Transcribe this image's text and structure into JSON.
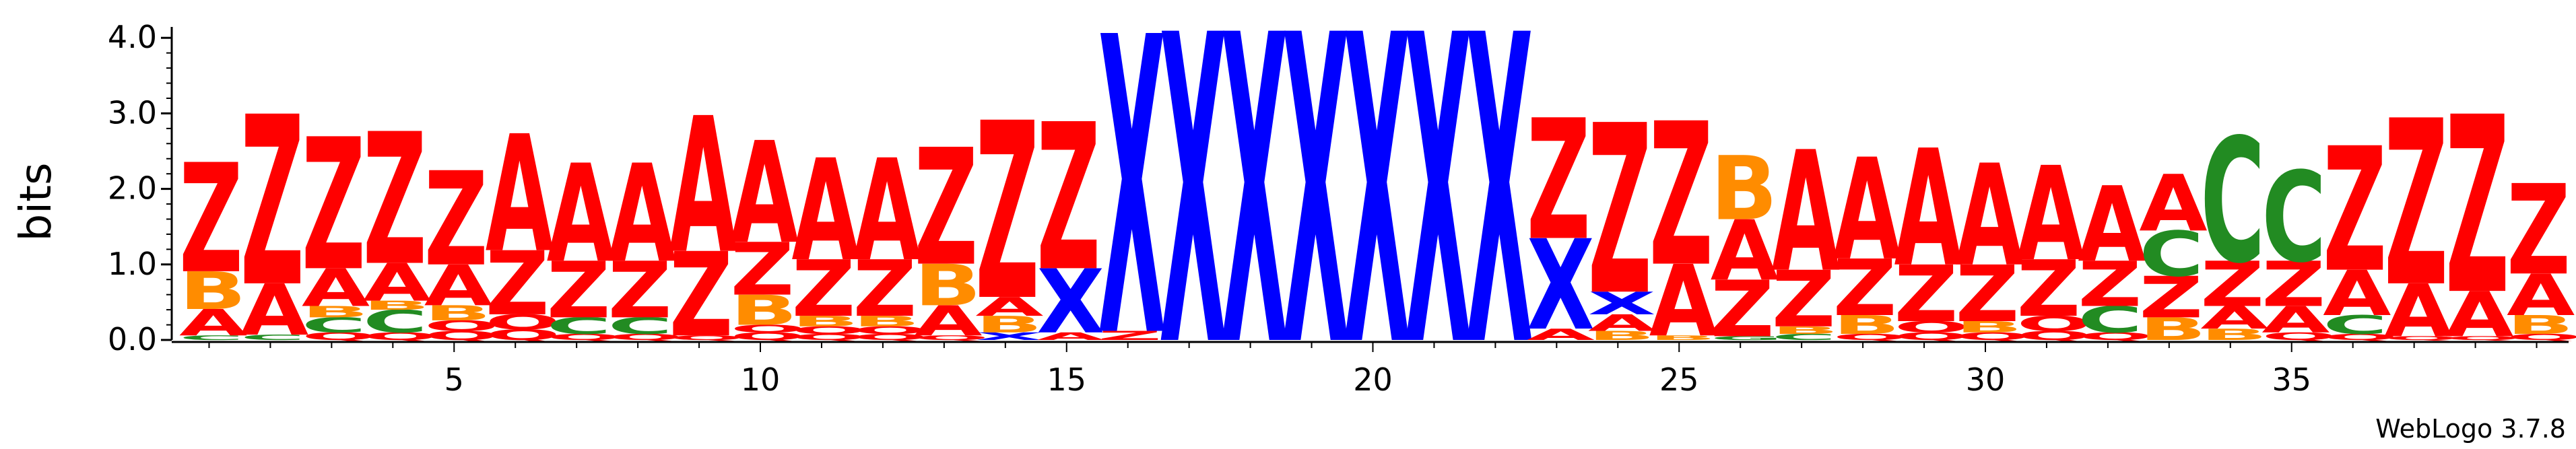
{
  "chart_data": {
    "type": "sequence-logo",
    "ylabel": "bits",
    "ylim": [
      0,
      4.1
    ],
    "yticks": [
      "0.0",
      "1.0",
      "2.0",
      "3.0",
      "4.0"
    ],
    "ytick_values": [
      0,
      1,
      2,
      3,
      4
    ],
    "xticks": [
      "5",
      "10",
      "15",
      "20",
      "25",
      "30",
      "35"
    ],
    "xtick_positions": [
      5,
      10,
      15,
      20,
      25,
      30,
      35
    ],
    "footer": "WebLogo 3.7.8",
    "colors": {
      "Z": "#ff0000",
      "A": "#ff0000",
      "B": "#ff8c00",
      "C": "#228b22",
      "X": "#0000ff",
      "Q": "#ff0000",
      "O": "#ff0000",
      "G": "#228b22",
      "S": "#228b22",
      "N": "#ff8c00"
    },
    "positions": [
      {
        "pos": 1,
        "stack": [
          [
            "C",
            0.06
          ],
          [
            "A",
            0.35
          ],
          [
            "B",
            0.5
          ],
          [
            "Z",
            1.45
          ]
        ]
      },
      {
        "pos": 2,
        "stack": [
          [
            "C",
            0.07
          ],
          [
            "A",
            0.68
          ],
          [
            "Z",
            2.25
          ]
        ]
      },
      {
        "pos": 3,
        "stack": [
          [
            "Q",
            0.1
          ],
          [
            "C",
            0.2
          ],
          [
            "B",
            0.15
          ],
          [
            "A",
            0.5
          ],
          [
            "Z",
            1.75
          ]
        ]
      },
      {
        "pos": 4,
        "stack": [
          [
            "Q",
            0.1
          ],
          [
            "C",
            0.3
          ],
          [
            "B",
            0.12
          ],
          [
            "A",
            0.5
          ],
          [
            "Z",
            1.75
          ]
        ]
      },
      {
        "pos": 5,
        "stack": [
          [
            "Q",
            0.12
          ],
          [
            "O",
            0.14
          ],
          [
            "B",
            0.2
          ],
          [
            "A",
            0.54
          ],
          [
            "Z",
            1.25
          ]
        ]
      },
      {
        "pos": 6,
        "stack": [
          [
            "Q",
            0.14
          ],
          [
            "O",
            0.2
          ],
          [
            "Z",
            0.85
          ],
          [
            "A",
            1.55
          ]
        ]
      },
      {
        "pos": 7,
        "stack": [
          [
            "Q",
            0.08
          ],
          [
            "C",
            0.22
          ],
          [
            "Z",
            0.75
          ],
          [
            "A",
            1.3
          ]
        ]
      },
      {
        "pos": 8,
        "stack": [
          [
            "Q",
            0.08
          ],
          [
            "C",
            0.22
          ],
          [
            "Z",
            0.75
          ],
          [
            "A",
            1.3
          ]
        ]
      },
      {
        "pos": 9,
        "stack": [
          [
            "Q",
            0.06
          ],
          [
            "Z",
            1.12
          ],
          [
            "A",
            1.8
          ]
        ]
      },
      {
        "pos": 10,
        "stack": [
          [
            "Q",
            0.1
          ],
          [
            "O",
            0.1
          ],
          [
            "B",
            0.4
          ],
          [
            "Z",
            0.7
          ],
          [
            "A",
            1.35
          ]
        ]
      },
      {
        "pos": 11,
        "stack": [
          [
            "Q",
            0.08
          ],
          [
            "O",
            0.1
          ],
          [
            "B",
            0.14
          ],
          [
            "Z",
            0.75
          ],
          [
            "A",
            1.35
          ]
        ]
      },
      {
        "pos": 12,
        "stack": [
          [
            "Q",
            0.08
          ],
          [
            "O",
            0.1
          ],
          [
            "B",
            0.14
          ],
          [
            "Z",
            0.75
          ],
          [
            "A",
            1.35
          ]
        ]
      },
      {
        "pos": 13,
        "stack": [
          [
            "Q",
            0.06
          ],
          [
            "A",
            0.4
          ],
          [
            "B",
            0.55
          ],
          [
            "Z",
            1.55
          ]
        ]
      },
      {
        "pos": 14,
        "stack": [
          [
            "X",
            0.1
          ],
          [
            "B",
            0.22
          ],
          [
            "A",
            0.25
          ],
          [
            "Z",
            2.35
          ]
        ]
      },
      {
        "pos": 15,
        "stack": [
          [
            "A",
            0.1
          ],
          [
            "X",
            0.85
          ],
          [
            "Z",
            1.95
          ]
        ]
      },
      {
        "pos": 16,
        "stack": [
          [
            "Z",
            0.12
          ],
          [
            "X",
            3.95
          ]
        ]
      },
      {
        "pos": 17,
        "stack": [
          [
            "X",
            4.1
          ]
        ]
      },
      {
        "pos": 18,
        "stack": [
          [
            "X",
            4.1
          ]
        ]
      },
      {
        "pos": 19,
        "stack": [
          [
            "X",
            4.1
          ]
        ]
      },
      {
        "pos": 20,
        "stack": [
          [
            "X",
            4.1
          ]
        ]
      },
      {
        "pos": 21,
        "stack": [
          [
            "X",
            4.1
          ]
        ]
      },
      {
        "pos": 22,
        "stack": [
          [
            "X",
            4.1
          ]
        ]
      },
      {
        "pos": 23,
        "stack": [
          [
            "A",
            0.15
          ],
          [
            "X",
            1.2
          ],
          [
            "Z",
            1.6
          ]
        ]
      },
      {
        "pos": 24,
        "stack": [
          [
            "B",
            0.12
          ],
          [
            "A",
            0.22
          ],
          [
            "X",
            0.3
          ],
          [
            "Z",
            2.25
          ]
        ]
      },
      {
        "pos": 25,
        "stack": [
          [
            "B",
            0.06
          ],
          [
            "A",
            0.95
          ],
          [
            "Z",
            1.9
          ]
        ]
      },
      {
        "pos": 26,
        "stack": [
          [
            "G",
            0.05
          ],
          [
            "Z",
            0.75
          ],
          [
            "A",
            0.8
          ],
          [
            "B",
            0.85
          ]
        ]
      },
      {
        "pos": 27,
        "stack": [
          [
            "C",
            0.08
          ],
          [
            "B",
            0.1
          ],
          [
            "Z",
            0.75
          ],
          [
            "A",
            1.6
          ]
        ]
      },
      {
        "pos": 28,
        "stack": [
          [
            "Q",
            0.08
          ],
          [
            "B",
            0.25
          ],
          [
            "Z",
            0.75
          ],
          [
            "A",
            1.35
          ]
        ]
      },
      {
        "pos": 29,
        "stack": [
          [
            "Q",
            0.1
          ],
          [
            "O",
            0.15
          ],
          [
            "Z",
            0.75
          ],
          [
            "A",
            1.55
          ]
        ]
      },
      {
        "pos": 30,
        "stack": [
          [
            "Q",
            0.1
          ],
          [
            "B",
            0.15
          ],
          [
            "Z",
            0.75
          ],
          [
            "A",
            1.35
          ]
        ]
      },
      {
        "pos": 31,
        "stack": [
          [
            "Q",
            0.12
          ],
          [
            "O",
            0.2
          ],
          [
            "Z",
            0.75
          ],
          [
            "A",
            1.25
          ]
        ]
      },
      {
        "pos": 32,
        "stack": [
          [
            "Q",
            0.1
          ],
          [
            "C",
            0.35
          ],
          [
            "Z",
            0.6
          ],
          [
            "A",
            1.0
          ]
        ]
      },
      {
        "pos": 33,
        "stack": [
          [
            "B",
            0.3
          ],
          [
            "Z",
            0.55
          ],
          [
            "C",
            0.6
          ],
          [
            "A",
            0.75
          ]
        ]
      },
      {
        "pos": 34,
        "stack": [
          [
            "B",
            0.15
          ],
          [
            "A",
            0.3
          ],
          [
            "Z",
            0.6
          ],
          [
            "C",
            1.65
          ]
        ]
      },
      {
        "pos": 35,
        "stack": [
          [
            "Q",
            0.1
          ],
          [
            "A",
            0.35
          ],
          [
            "Z",
            0.6
          ],
          [
            "C",
            1.2
          ]
        ]
      },
      {
        "pos": 36,
        "stack": [
          [
            "Q",
            0.08
          ],
          [
            "C",
            0.25
          ],
          [
            "A",
            0.6
          ],
          [
            "Z",
            1.65
          ]
        ]
      },
      {
        "pos": 37,
        "stack": [
          [
            "Q",
            0.05
          ],
          [
            "A",
            0.7
          ],
          [
            "Z",
            2.2
          ]
        ]
      },
      {
        "pos": 38,
        "stack": [
          [
            "Q",
            0.05
          ],
          [
            "A",
            0.6
          ],
          [
            "Z",
            2.35
          ]
        ]
      },
      {
        "pos": 39,
        "stack": [
          [
            "Q",
            0.08
          ],
          [
            "B",
            0.25
          ],
          [
            "A",
            0.55
          ],
          [
            "Z",
            1.2
          ]
        ]
      }
    ]
  }
}
